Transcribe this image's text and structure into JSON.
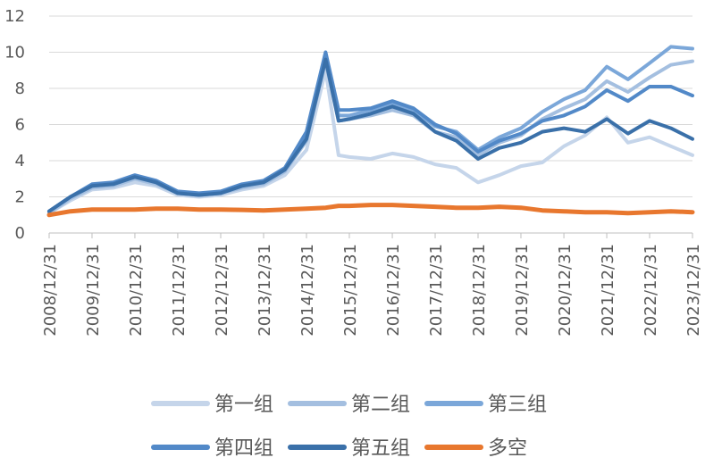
{
  "chart_data": {
    "type": "line",
    "title": "",
    "xlabel": "",
    "ylabel": "",
    "ylim": [
      0,
      12
    ],
    "y_ticks": [
      0,
      2,
      4,
      6,
      8,
      10,
      12
    ],
    "grid": "horizontal",
    "legend_position": "bottom",
    "x_ticks": [
      "2008/12/31",
      "2009/12/31",
      "2010/12/31",
      "2011/12/31",
      "2012/12/31",
      "2013/12/31",
      "2014/12/31",
      "2015/12/31",
      "2016/12/31",
      "2017/12/31",
      "2018/12/31",
      "2019/12/31",
      "2020/12/31",
      "2021/12/31",
      "2022/12/31",
      "2023/12/31"
    ],
    "x": [
      "2008/12/31",
      "2009/06/30",
      "2009/12/31",
      "2010/06/30",
      "2010/12/31",
      "2011/06/30",
      "2011/12/31",
      "2012/06/30",
      "2012/12/31",
      "2013/06/30",
      "2013/12/31",
      "2014/06/30",
      "2014/12/31",
      "2015/06/12",
      "2015/09/30",
      "2015/12/31",
      "2016/06/30",
      "2016/12/31",
      "2017/06/30",
      "2017/12/31",
      "2018/06/30",
      "2018/12/31",
      "2019/06/30",
      "2019/12/31",
      "2020/06/30",
      "2020/12/31",
      "2021/06/30",
      "2021/12/31",
      "2022/06/30",
      "2022/12/31",
      "2023/06/30",
      "2023/12/31"
    ],
    "series": [
      {
        "name": "第一组",
        "color": "#C5D5EA",
        "values": [
          1.1,
          1.8,
          2.4,
          2.5,
          2.8,
          2.6,
          2.1,
          2.0,
          2.1,
          2.4,
          2.6,
          3.2,
          4.6,
          9.0,
          4.3,
          4.2,
          4.1,
          4.4,
          4.2,
          3.8,
          3.6,
          2.8,
          3.2,
          3.7,
          3.9,
          4.8,
          5.4,
          6.4,
          5.0,
          5.3,
          4.8,
          4.3
        ]
      },
      {
        "name": "第二组",
        "color": "#A4BFE0",
        "values": [
          1.1,
          1.9,
          2.5,
          2.6,
          3.0,
          2.7,
          2.2,
          2.1,
          2.2,
          2.5,
          2.7,
          3.4,
          5.1,
          9.5,
          6.2,
          6.3,
          6.5,
          6.8,
          6.5,
          5.6,
          5.3,
          4.3,
          5.0,
          5.4,
          6.3,
          6.9,
          7.4,
          8.4,
          7.8,
          8.6,
          9.3,
          9.5
        ]
      },
      {
        "name": "第三组",
        "color": "#7BA7D9",
        "values": [
          1.2,
          2.0,
          2.6,
          2.7,
          3.1,
          2.8,
          2.2,
          2.1,
          2.2,
          2.6,
          2.8,
          3.5,
          5.4,
          9.8,
          6.5,
          6.5,
          6.8,
          7.2,
          6.8,
          5.9,
          5.6,
          4.6,
          5.3,
          5.8,
          6.7,
          7.4,
          7.9,
          9.2,
          8.5,
          9.4,
          10.3,
          10.2
        ]
      },
      {
        "name": "第四组",
        "color": "#5289C8",
        "values": [
          1.2,
          2.0,
          2.7,
          2.8,
          3.2,
          2.9,
          2.3,
          2.2,
          2.3,
          2.7,
          2.9,
          3.6,
          5.6,
          10.0,
          6.8,
          6.8,
          6.9,
          7.3,
          6.9,
          6.0,
          5.5,
          4.5,
          5.1,
          5.5,
          6.2,
          6.5,
          7.0,
          7.9,
          7.3,
          8.1,
          8.1,
          7.6
        ]
      },
      {
        "name": "第五组",
        "color": "#3A70A9",
        "values": [
          1.2,
          2.0,
          2.6,
          2.7,
          3.1,
          2.8,
          2.2,
          2.1,
          2.2,
          2.6,
          2.8,
          3.5,
          5.2,
          9.6,
          6.2,
          6.3,
          6.6,
          7.0,
          6.6,
          5.6,
          5.1,
          4.1,
          4.7,
          5.0,
          5.6,
          5.8,
          5.6,
          6.3,
          5.5,
          6.2,
          5.8,
          5.2
        ]
      },
      {
        "name": "多空",
        "color": "#E8772E",
        "values": [
          1.0,
          1.2,
          1.3,
          1.3,
          1.3,
          1.35,
          1.35,
          1.3,
          1.3,
          1.28,
          1.25,
          1.3,
          1.35,
          1.4,
          1.5,
          1.5,
          1.55,
          1.55,
          1.5,
          1.45,
          1.4,
          1.4,
          1.45,
          1.4,
          1.25,
          1.2,
          1.15,
          1.15,
          1.1,
          1.15,
          1.2,
          1.15
        ]
      }
    ]
  }
}
